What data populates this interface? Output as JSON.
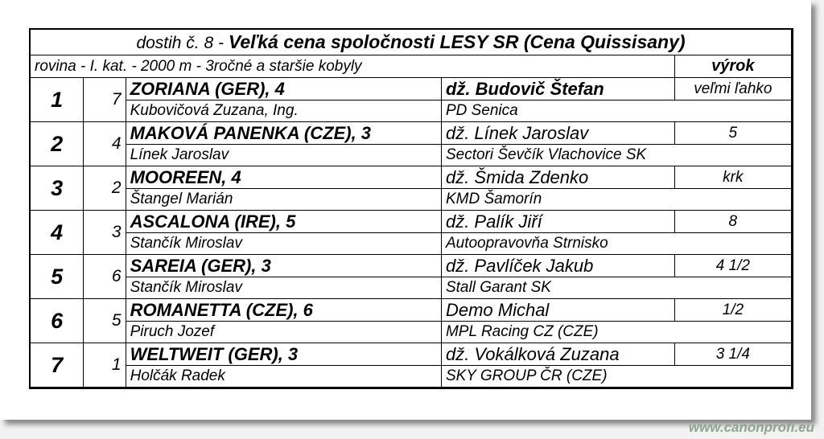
{
  "header": {
    "race_prefix": "dostih č. 8 -",
    "race_name": "Veľká cena spoločnosti LESY SR (Cena Quissisany)",
    "conditions": "rovina - I. kat. - 2000 m - 3ročné a staršie kobyly",
    "result_label": "výrok"
  },
  "rows": [
    {
      "place": "1",
      "number": "7",
      "horse": "ZORIANA (GER), 4",
      "jockey": "dž. Budovič Štefan",
      "result": "veľmi ľahko",
      "trainer": "Kubovičová Zuzana, Ing.",
      "owner": "PD Senica"
    },
    {
      "place": "2",
      "number": "4",
      "horse": "MAKOVÁ PANENKA (CZE), 3",
      "jockey": "dž. Línek Jaroslav",
      "result": "5",
      "trainer": "Línek Jaroslav",
      "owner": "Sectori Ševčík Vlachovice SK"
    },
    {
      "place": "3",
      "number": "2",
      "horse": "MOOREEN, 4",
      "jockey": "dž. Šmida Zdenko",
      "result": "krk",
      "trainer": "Štangel Marián",
      "owner": "KMD Šamorín"
    },
    {
      "place": "4",
      "number": "3",
      "horse": "ASCALONA (IRE), 5",
      "jockey": "dž. Palík Jiří",
      "result": "8",
      "trainer": "Stančík Miroslav",
      "owner": "Autoopravovňa Strnisko"
    },
    {
      "place": "5",
      "number": "6",
      "horse": "SAREIA (GER), 3",
      "jockey": "dž. Pavlíček Jakub",
      "result": "4 1/2",
      "trainer": "Stančík Miroslav",
      "owner": "Stall Garant SK"
    },
    {
      "place": "6",
      "number": "5",
      "horse": "ROMANETTA (CZE), 6",
      "jockey": "Demo Michal",
      "result": "1/2",
      "trainer": "Piruch Jozef",
      "owner": "MPL Racing CZ (CZE)"
    },
    {
      "place": "7",
      "number": "1",
      "horse": "WELTWEIT (GER), 3",
      "jockey": "dž. Vokálková Zuzana",
      "result": "3 1/4",
      "trainer": "Holčák Radek",
      "owner": "SKY GROUP ČR (CZE)"
    }
  ],
  "watermark": "www.canonprofi.eu"
}
